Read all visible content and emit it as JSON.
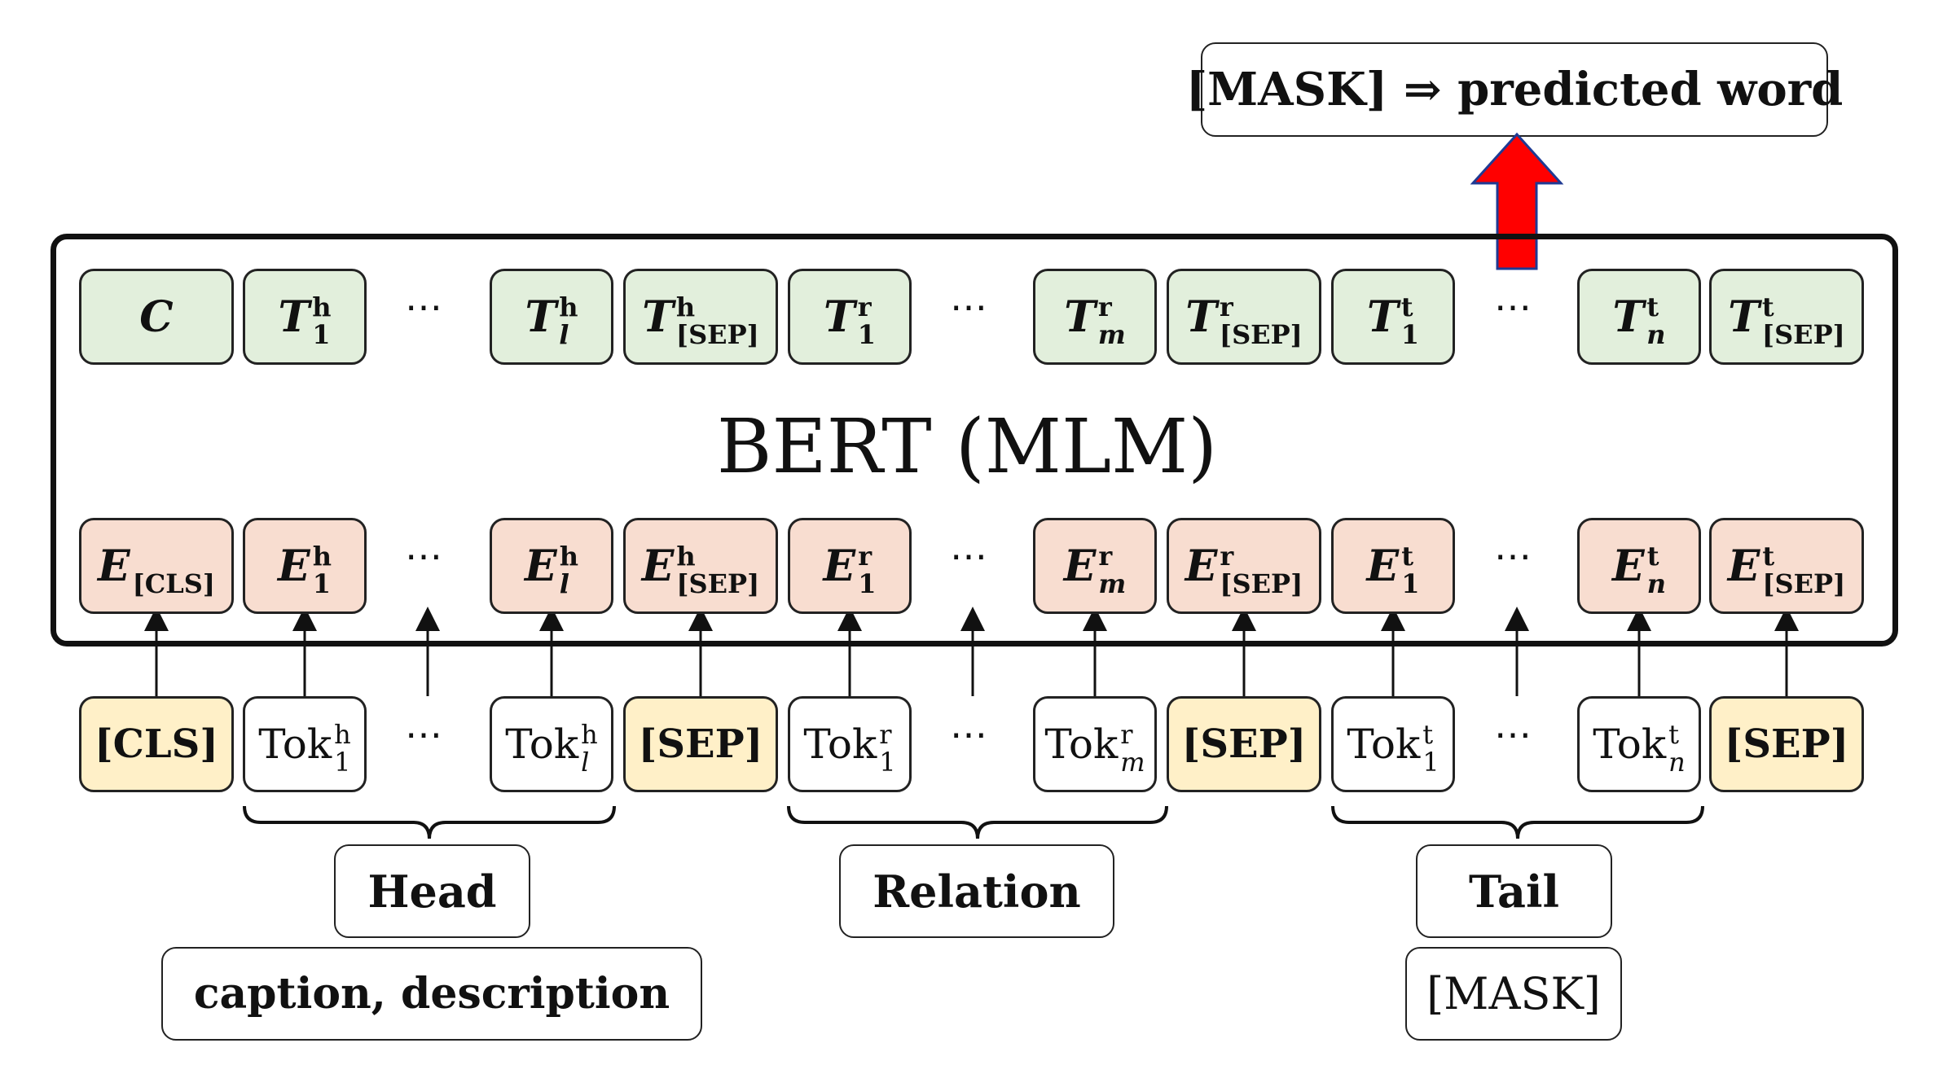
{
  "output": {
    "label": "[MASK] ⇒ predicted word"
  },
  "model": {
    "label": "BERT (MLM)"
  },
  "colors": {
    "output_fill": "#e2efdc",
    "embedding_fill": "#f8ddd0",
    "special_fill": "#fff0c8",
    "arrow": "#ff0000"
  },
  "ellipsis": "⋯",
  "outputs": [
    {
      "sym": "C",
      "sup": "",
      "sub": ""
    },
    {
      "sym": "T",
      "sup": "h",
      "sub": "1"
    },
    {
      "sym": "T",
      "sup": "h",
      "sub": "l"
    },
    {
      "sym": "T",
      "sup": "h",
      "sub": "[SEP]"
    },
    {
      "sym": "T",
      "sup": "r",
      "sub": "1"
    },
    {
      "sym": "T",
      "sup": "r",
      "sub": "m"
    },
    {
      "sym": "T",
      "sup": "r",
      "sub": "[SEP]"
    },
    {
      "sym": "T",
      "sup": "t",
      "sub": "1"
    },
    {
      "sym": "T",
      "sup": "t",
      "sub": "n"
    },
    {
      "sym": "T",
      "sup": "t",
      "sub": "[SEP]"
    }
  ],
  "embeddings": [
    {
      "sym": "E",
      "sup": "",
      "sub": "[CLS]"
    },
    {
      "sym": "E",
      "sup": "h",
      "sub": "1"
    },
    {
      "sym": "E",
      "sup": "h",
      "sub": "l"
    },
    {
      "sym": "E",
      "sup": "h",
      "sub": "[SEP]"
    },
    {
      "sym": "E",
      "sup": "r",
      "sub": "1"
    },
    {
      "sym": "E",
      "sup": "r",
      "sub": "m"
    },
    {
      "sym": "E",
      "sup": "r",
      "sub": "[SEP]"
    },
    {
      "sym": "E",
      "sup": "t",
      "sub": "1"
    },
    {
      "sym": "E",
      "sup": "t",
      "sub": "n"
    },
    {
      "sym": "E",
      "sup": "t",
      "sub": "[SEP]"
    }
  ],
  "tokens": [
    {
      "text": "[CLS]",
      "special": true
    },
    {
      "text": "Tok",
      "sup": "h",
      "sub": "1"
    },
    {
      "text": "Tok",
      "sup": "h",
      "sub": "l"
    },
    {
      "text": "[SEP]",
      "special": true
    },
    {
      "text": "Tok",
      "sup": "r",
      "sub": "1"
    },
    {
      "text": "Tok",
      "sup": "r",
      "sub": "m"
    },
    {
      "text": "[SEP]",
      "special": true
    },
    {
      "text": "Tok",
      "sup": "t",
      "sub": "1"
    },
    {
      "text": "Tok",
      "sup": "t",
      "sub": "n"
    },
    {
      "text": "[SEP]",
      "special": true
    }
  ],
  "segments": {
    "head": {
      "label": "Head",
      "detail": "caption, description"
    },
    "relation": {
      "label": "Relation"
    },
    "tail": {
      "label": "Tail",
      "detail": "[MASK]"
    }
  }
}
